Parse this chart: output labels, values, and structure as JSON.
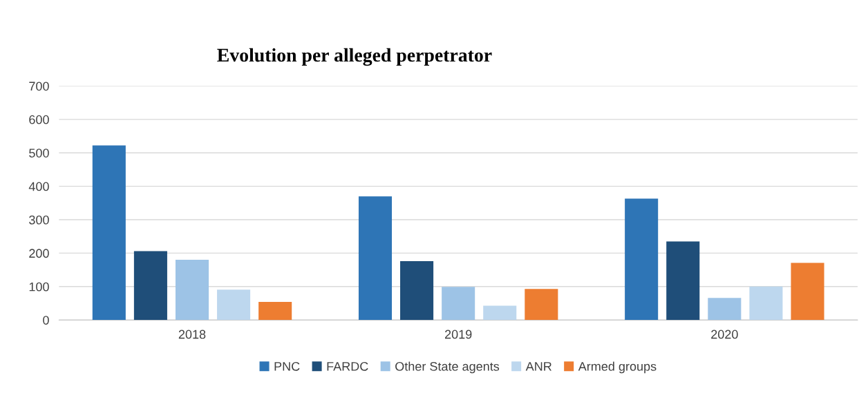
{
  "chart_data": {
    "type": "bar",
    "title": "Evolution per alleged perpetrator",
    "categories": [
      "2018",
      "2019",
      "2020"
    ],
    "series": [
      {
        "name": "PNC",
        "color": "#2e75b6",
        "values": [
          522,
          370,
          363
        ]
      },
      {
        "name": "FARDC",
        "color": "#1f4e79",
        "values": [
          206,
          176,
          235
        ]
      },
      {
        "name": "Other State agents",
        "color": "#9dc3e6",
        "values": [
          180,
          99,
          66
        ]
      },
      {
        "name": "ANR",
        "color": "#bdd7ee",
        "values": [
          91,
          43,
          100
        ]
      },
      {
        "name": "Armed groups",
        "color": "#ed7d31",
        "values": [
          54,
          93,
          171
        ]
      }
    ],
    "ylim": [
      0,
      700
    ],
    "yticks": [
      0,
      100,
      200,
      300,
      400,
      500,
      600,
      700
    ],
    "grid": "y",
    "legend": "bottom"
  }
}
